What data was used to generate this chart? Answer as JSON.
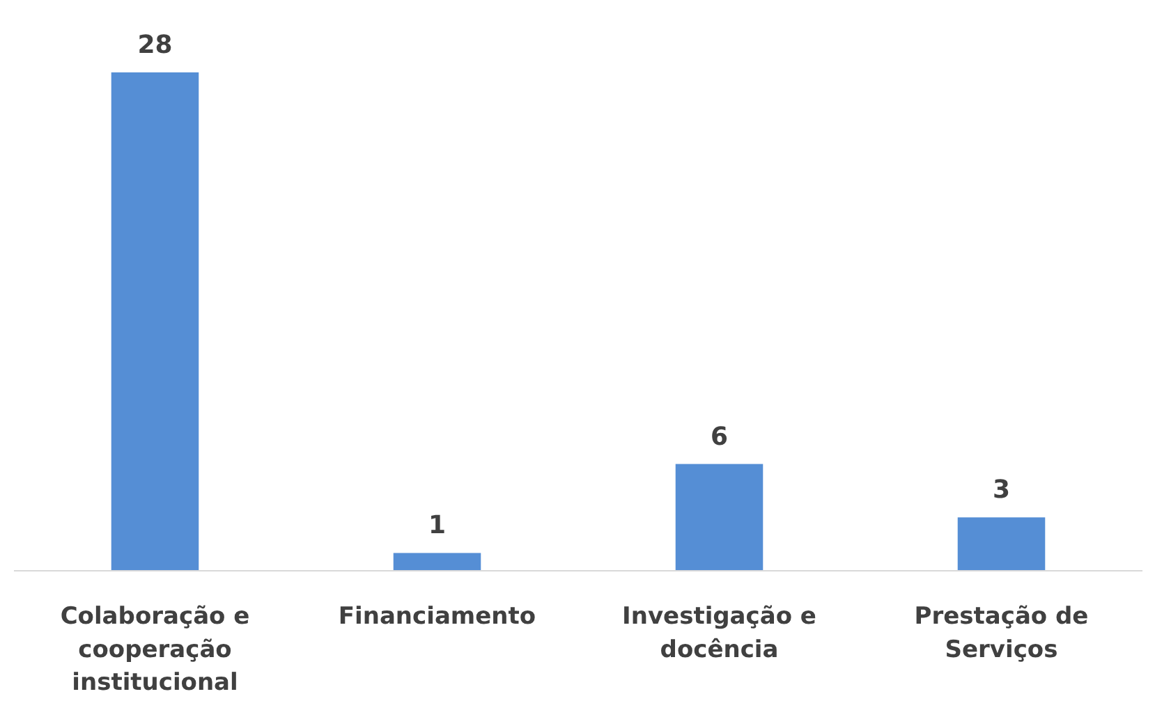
{
  "chart_data": {
    "type": "bar",
    "categories": [
      "Colaboração e cooperação institucional",
      "Financiamento",
      "Investigação e docência",
      "Prestação de Serviços"
    ],
    "values": [
      28,
      1,
      6,
      3
    ],
    "color": "#558ed5",
    "data_labels": true
  }
}
